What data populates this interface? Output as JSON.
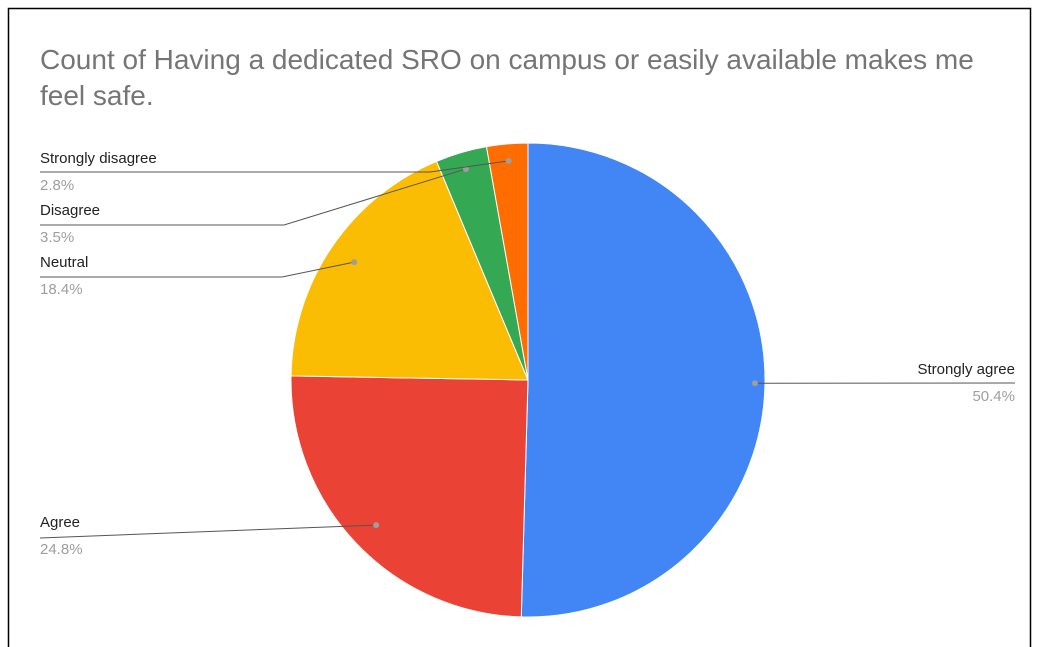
{
  "chart_data": {
    "type": "pie",
    "title": "Count of Having a dedicated SRO on campus or easily available makes me feel safe.",
    "categories": [
      "Strongly agree",
      "Agree",
      "Neutral",
      "Disagree",
      "Strongly disagree"
    ],
    "values": [
      50.4,
      24.8,
      18.4,
      3.5,
      2.8
    ],
    "value_labels": [
      "50.4%",
      "24.8%",
      "18.4%",
      "3.5%",
      "2.8%"
    ],
    "colors": [
      "#4285f4",
      "#ea4335",
      "#fbbc04",
      "#34a853",
      "#ff6d01"
    ]
  }
}
